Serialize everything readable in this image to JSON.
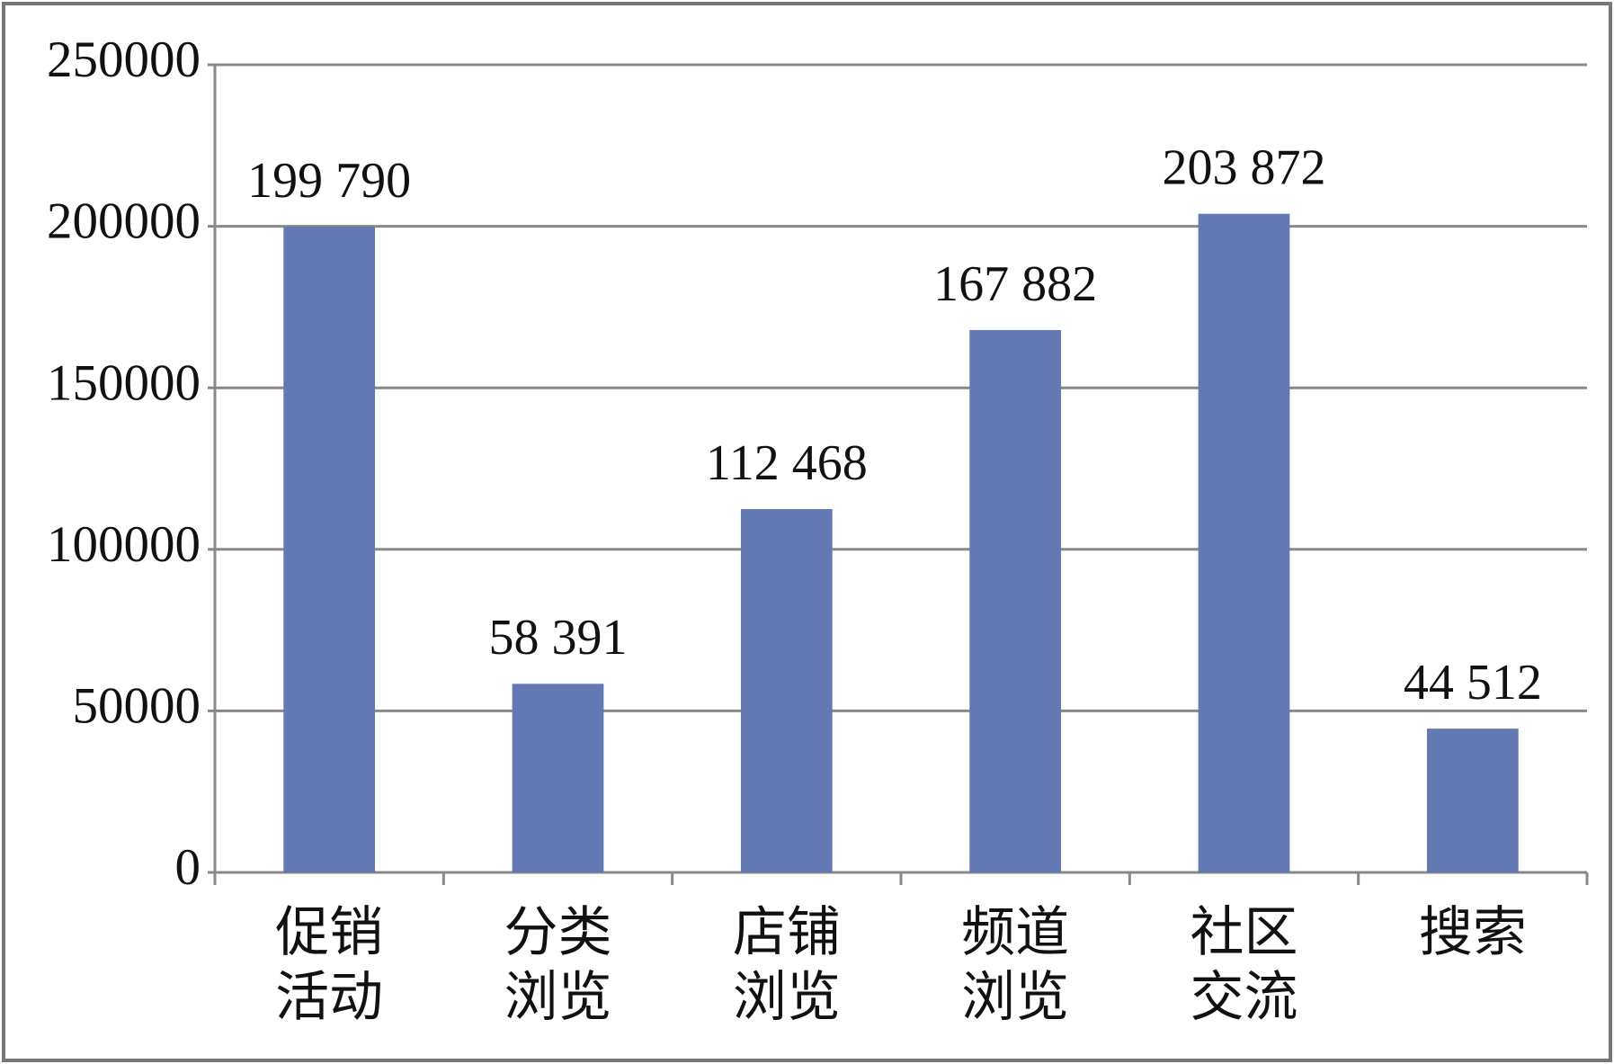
{
  "chart_data": {
    "type": "bar",
    "categories": [
      "促销活动",
      "分类浏览",
      "店铺浏览",
      "频道浏览",
      "社区交流",
      "搜索"
    ],
    "values": [
      199790,
      58391,
      112468,
      167882,
      203872,
      44512
    ],
    "value_labels": [
      "199 790",
      "58 391",
      "112 468",
      "167 882",
      "203 872",
      "44 512"
    ],
    "color": "#6279b4",
    "ylim": [
      0,
      250000
    ],
    "yticks": [
      0,
      50000,
      100000,
      150000,
      200000,
      250000
    ],
    "grid": true
  }
}
